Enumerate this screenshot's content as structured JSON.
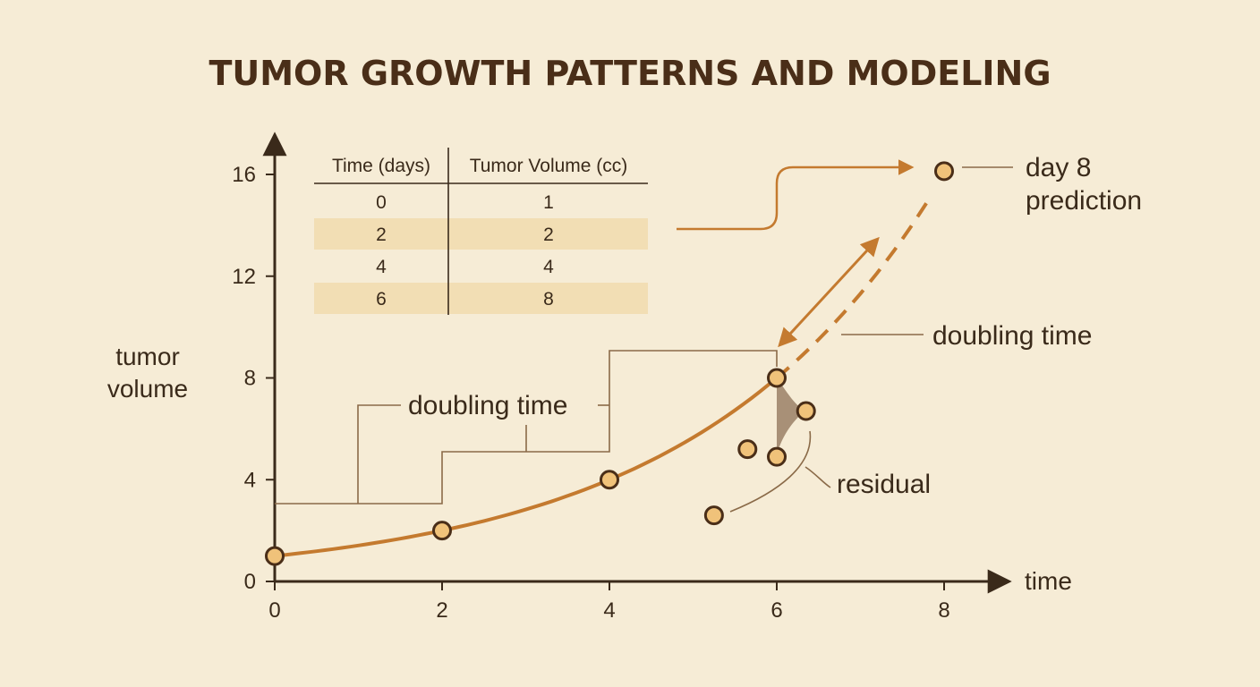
{
  "chart_data": {
    "type": "line",
    "title": "TUMOR GROWTH PATTERNS AND MODELING",
    "xlabel": "time",
    "ylabel": "tumor volume",
    "xlim": [
      0,
      8
    ],
    "ylim": [
      0,
      16
    ],
    "x_ticks": [
      "0",
      "2",
      "4",
      "6",
      "8"
    ],
    "y_ticks": [
      "0",
      "4",
      "8",
      "12",
      "16"
    ],
    "grid": false,
    "series": [
      {
        "x": [
          0,
          2,
          4,
          6
        ],
        "y": [
          1,
          2,
          4,
          8
        ],
        "style": "solid",
        "color": "#c47a2f"
      },
      {
        "x": [
          6,
          8
        ],
        "y": [
          8,
          16
        ],
        "style": "dashed",
        "color": "#c47a2f"
      }
    ],
    "scatter_points": [
      {
        "x": 5.25,
        "y": 2.6
      },
      {
        "x": 5.65,
        "y": 5.2
      },
      {
        "x": 6.0,
        "y": 4.9
      },
      {
        "x": 6.35,
        "y": 6.7
      }
    ],
    "prediction_point": {
      "x": 8,
      "y": 16.2
    },
    "annotations": {
      "doubling_time_1": "doubling time",
      "doubling_time_2": "doubling time",
      "prediction": [
        "day 8",
        "prediction"
      ],
      "residual": "residual"
    },
    "table": {
      "columns": [
        "Time (days)",
        "Tumor Volume (cc)"
      ],
      "rows": [
        [
          "0",
          "1"
        ],
        [
          "2",
          "2"
        ],
        [
          "4",
          "4"
        ],
        [
          "6",
          "8"
        ]
      ]
    },
    "colors": {
      "background": "#f6ecd6",
      "curve": "#c47a2f",
      "point_fill": "#f0c27a",
      "point_stroke": "#4a2e18",
      "bracket": "#8a6a48",
      "axis": "#3a2a1a",
      "table_band": "#f2deb4"
    }
  }
}
